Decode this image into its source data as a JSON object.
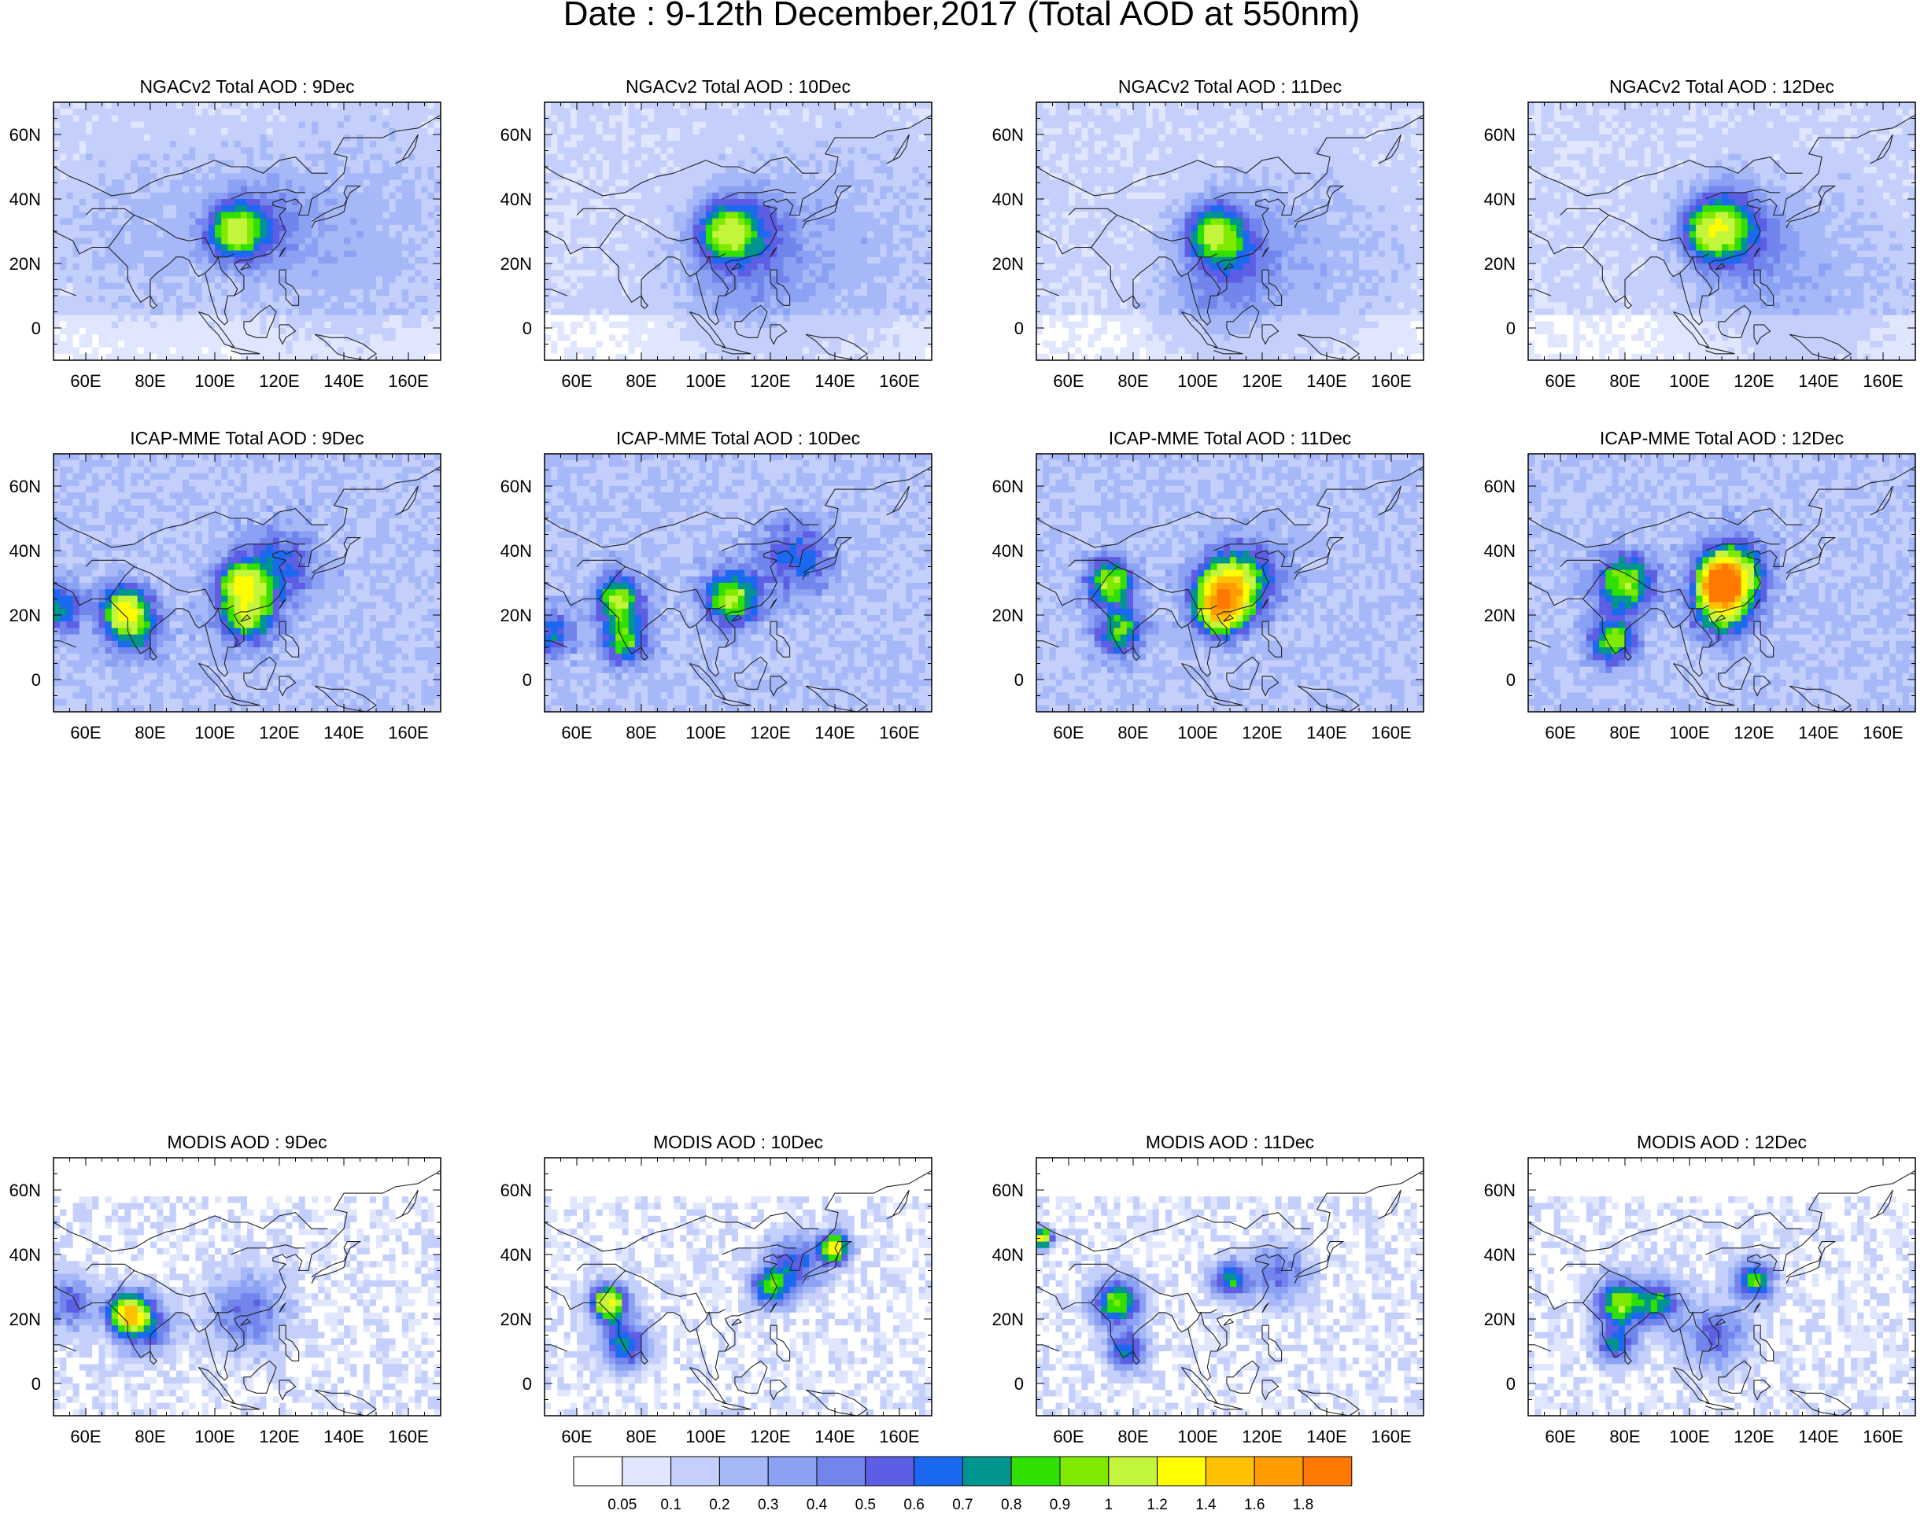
{
  "figure": {
    "title": "Date : 9-12th December,2017 (Total AOD at 550nm)"
  },
  "chart_data": {
    "type": "heatmap",
    "title": "Date : 9-12th December,2017 (Total AOD at 550nm)",
    "variable": "Total AOD at 550nm",
    "lon_range": [
      50,
      170
    ],
    "lat_range": [
      -10,
      70
    ],
    "x_ticks": [
      "60E",
      "80E",
      "100E",
      "120E",
      "140E",
      "160E"
    ],
    "x_tick_values": [
      60,
      80,
      100,
      120,
      140,
      160
    ],
    "y_ticks": [
      "60N",
      "40N",
      "20N",
      "0"
    ],
    "y_tick_values": [
      60,
      40,
      20,
      0
    ],
    "panels": [
      {
        "title": "NGACv2 Total AOD : 9Dec",
        "model": "ngac",
        "background": 0.12,
        "hotspots": [
          {
            "lon": 106,
            "lat": 30,
            "aod": 0.75,
            "r": 6
          },
          {
            "lon": 115,
            "lat": 32,
            "aod": 0.3,
            "r": 9
          },
          {
            "lon": 80,
            "lat": 28,
            "aod": 0.12,
            "r": 18
          },
          {
            "lon": 140,
            "lat": 28,
            "aod": 0.15,
            "r": 22
          }
        ]
      },
      {
        "title": "NGACv2 Total AOD : 10Dec",
        "model": "ngac",
        "background": 0.12,
        "hotspots": [
          {
            "lon": 106,
            "lat": 30,
            "aod": 0.7,
            "r": 6
          },
          {
            "lon": 114,
            "lat": 31,
            "aod": 0.3,
            "r": 9
          },
          {
            "lon": 110,
            "lat": 15,
            "aod": 0.2,
            "r": 14
          },
          {
            "lon": 140,
            "lat": 25,
            "aod": 0.14,
            "r": 22
          }
        ]
      },
      {
        "title": "NGACv2 Total AOD : 11Dec",
        "model": "ngac",
        "background": 0.12,
        "hotspots": [
          {
            "lon": 105,
            "lat": 30,
            "aod": 0.65,
            "r": 6
          },
          {
            "lon": 110,
            "lat": 25,
            "aod": 0.3,
            "r": 9
          },
          {
            "lon": 105,
            "lat": 10,
            "aod": 0.18,
            "r": 12
          },
          {
            "lon": 130,
            "lat": 20,
            "aod": 0.15,
            "r": 20
          }
        ]
      },
      {
        "title": "NGACv2 Total AOD : 12Dec",
        "model": "ngac",
        "background": 0.12,
        "hotspots": [
          {
            "lon": 106,
            "lat": 30,
            "aod": 0.65,
            "r": 6
          },
          {
            "lon": 112,
            "lat": 34,
            "aod": 0.4,
            "r": 8
          },
          {
            "lon": 115,
            "lat": 25,
            "aod": 0.25,
            "r": 10
          },
          {
            "lon": 135,
            "lat": 15,
            "aod": 0.15,
            "r": 20
          }
        ]
      },
      {
        "title": "ICAP-MME Total AOD : 9Dec",
        "model": "icap",
        "background": 0.2,
        "hotspots": [
          {
            "lon": 72,
            "lat": 22,
            "aod": 0.9,
            "r": 5
          },
          {
            "lon": 75,
            "lat": 15,
            "aod": 0.5,
            "r": 6
          },
          {
            "lon": 108,
            "lat": 30,
            "aod": 0.8,
            "r": 5
          },
          {
            "lon": 110,
            "lat": 20,
            "aod": 0.85,
            "r": 6
          },
          {
            "lon": 120,
            "lat": 35,
            "aod": 0.45,
            "r": 8
          },
          {
            "lon": 52,
            "lat": 22,
            "aod": 0.6,
            "r": 5
          }
        ]
      },
      {
        "title": "ICAP-MME Total AOD : 10Dec",
        "model": "icap",
        "background": 0.2,
        "hotspots": [
          {
            "lon": 73,
            "lat": 25,
            "aod": 0.85,
            "r": 5
          },
          {
            "lon": 75,
            "lat": 12,
            "aod": 0.7,
            "r": 5
          },
          {
            "lon": 108,
            "lat": 25,
            "aod": 0.85,
            "r": 6
          },
          {
            "lon": 128,
            "lat": 38,
            "aod": 0.45,
            "r": 8
          },
          {
            "lon": 52,
            "lat": 14,
            "aod": 0.5,
            "r": 5
          }
        ]
      },
      {
        "title": "ICAP-MME Total AOD : 11Dec",
        "model": "icap",
        "background": 0.2,
        "hotspots": [
          {
            "lon": 73,
            "lat": 30,
            "aod": 0.85,
            "r": 5
          },
          {
            "lon": 76,
            "lat": 15,
            "aod": 0.7,
            "r": 5
          },
          {
            "lon": 108,
            "lat": 27,
            "aod": 1.1,
            "r": 6
          },
          {
            "lon": 115,
            "lat": 32,
            "aod": 0.55,
            "r": 8
          },
          {
            "lon": 107,
            "lat": 20,
            "aod": 0.8,
            "r": 5
          }
        ]
      },
      {
        "title": "ICAP-MME Total AOD : 12Dec",
        "model": "icap",
        "background": 0.2,
        "hotspots": [
          {
            "lon": 110,
            "lat": 30,
            "aod": 1.5,
            "r": 4
          },
          {
            "lon": 113,
            "lat": 33,
            "aod": 1.0,
            "r": 7
          },
          {
            "lon": 110,
            "lat": 22,
            "aod": 0.85,
            "r": 6
          },
          {
            "lon": 80,
            "lat": 30,
            "aod": 0.85,
            "r": 6
          },
          {
            "lon": 76,
            "lat": 12,
            "aod": 0.75,
            "r": 5
          }
        ]
      },
      {
        "title": "MODIS AOD : 9Dec",
        "model": "modis",
        "background": 0.1,
        "hotspots": [
          {
            "lon": 73,
            "lat": 22,
            "aod": 1.2,
            "r": 4
          },
          {
            "lon": 78,
            "lat": 18,
            "aod": 0.6,
            "r": 6
          },
          {
            "lon": 110,
            "lat": 22,
            "aod": 0.45,
            "r": 8
          },
          {
            "lon": 55,
            "lat": 25,
            "aod": 0.45,
            "r": 6
          }
        ]
      },
      {
        "title": "MODIS AOD : 10Dec",
        "model": "modis",
        "background": 0.1,
        "hotspots": [
          {
            "lon": 70,
            "lat": 25,
            "aod": 1.2,
            "r": 4
          },
          {
            "lon": 75,
            "lat": 12,
            "aod": 0.7,
            "r": 5
          },
          {
            "lon": 120,
            "lat": 30,
            "aod": 0.8,
            "r": 4
          },
          {
            "lon": 128,
            "lat": 37,
            "aod": 0.55,
            "r": 6
          },
          {
            "lon": 140,
            "lat": 42,
            "aod": 1.3,
            "r": 3
          }
        ]
      },
      {
        "title": "MODIS AOD : 11Dec",
        "model": "modis",
        "background": 0.1,
        "hotspots": [
          {
            "lon": 75,
            "lat": 25,
            "aod": 0.9,
            "r": 5
          },
          {
            "lon": 78,
            "lat": 10,
            "aod": 0.7,
            "r": 4
          },
          {
            "lon": 110,
            "lat": 32,
            "aod": 0.7,
            "r": 4
          },
          {
            "lon": 125,
            "lat": 34,
            "aod": 0.45,
            "r": 6
          },
          {
            "lon": 52,
            "lat": 45,
            "aod": 1.3,
            "r": 2
          }
        ]
      },
      {
        "title": "MODIS AOD : 12Dec",
        "model": "modis",
        "background": 0.1,
        "hotspots": [
          {
            "lon": 78,
            "lat": 25,
            "aod": 0.9,
            "r": 5
          },
          {
            "lon": 77,
            "lat": 12,
            "aod": 0.7,
            "r": 4
          },
          {
            "lon": 120,
            "lat": 32,
            "aod": 0.85,
            "r": 4
          },
          {
            "lon": 90,
            "lat": 25,
            "aod": 0.7,
            "r": 5
          },
          {
            "lon": 108,
            "lat": 15,
            "aod": 0.45,
            "r": 7
          }
        ]
      }
    ],
    "colorbar": {
      "labels": [
        "0.05",
        "0.1",
        "0.2",
        "0.3",
        "0.4",
        "0.5",
        "0.6",
        "0.7",
        "0.8",
        "0.9",
        "1",
        "1.2",
        "1.4",
        "1.6",
        "1.8"
      ],
      "levels": [
        0.05,
        0.1,
        0.2,
        0.3,
        0.4,
        0.5,
        0.6,
        0.7,
        0.8,
        0.9,
        1.0,
        1.2,
        1.4,
        1.6,
        1.8
      ],
      "colors": [
        "#ffffff",
        "#dfe6fd",
        "#c4d0fb",
        "#a6b8f7",
        "#8ba1f3",
        "#7185ec",
        "#5d5ee4",
        "#1b69f0",
        "#00958f",
        "#2fe000",
        "#7fea00",
        "#c3f53c",
        "#fffd00",
        "#ffc200",
        "#ff9d00",
        "#ff7800",
        "#ff1a00"
      ]
    }
  }
}
